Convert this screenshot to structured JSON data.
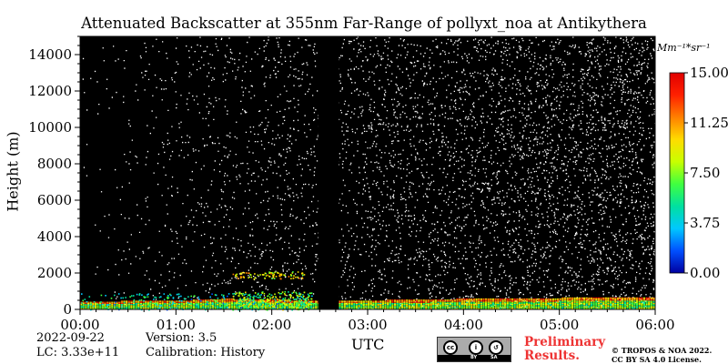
{
  "chart_data": {
    "type": "heatmap",
    "title": "Attenuated Backscatter at 355nm Far-Range of pollyxt_noa at Antikythera",
    "xlabel": "UTC",
    "ylabel": "Height (m)",
    "x_ticks": [
      "00:00",
      "01:00",
      "02:00",
      "03:00",
      "04:00",
      "05:00",
      "06:00"
    ],
    "xlim": [
      "00:00",
      "06:00"
    ],
    "y_ticks": [
      0,
      2000,
      4000,
      6000,
      8000,
      10000,
      12000,
      14000
    ],
    "ylim": [
      0,
      15000
    ],
    "colorbar": {
      "unit": "Mm⁻¹*sr⁻¹",
      "ticks": [
        "0.00",
        "3.75",
        "7.50",
        "11.25",
        "15.00"
      ],
      "range": [
        0,
        15
      ],
      "colors": [
        "#0000a0",
        "#0050ff",
        "#00c8ff",
        "#00e0a0",
        "#40ff40",
        "#c8ff00",
        "#ffdc00",
        "#ff8000",
        "#ff2000",
        "#e00000"
      ]
    },
    "background_color": "#000000",
    "noise_color": "#ffffff",
    "no_data_intervals": [
      [
        "02:29",
        "02:42"
      ]
    ],
    "boundary_layer_top": [
      {
        "time": "00:00",
        "height": 400
      },
      {
        "time": "01:00",
        "height": 450
      },
      {
        "time": "01:30",
        "height": 550
      },
      {
        "time": "02:00",
        "height": 500
      },
      {
        "time": "02:29",
        "height": 450
      },
      {
        "time": "02:42",
        "height": 450
      },
      {
        "time": "03:30",
        "height": 500
      },
      {
        "time": "04:00",
        "height": 550
      },
      {
        "time": "05:00",
        "height": 600
      },
      {
        "time": "06:00",
        "height": 650
      }
    ],
    "aerosol_features": [
      {
        "time_start": "00:00",
        "time_end": "02:25",
        "height_top": 900,
        "value": 7
      },
      {
        "time_start": "01:35",
        "time_end": "02:25",
        "height_top": 1000,
        "value": 10
      },
      {
        "time_start": "01:35",
        "time_end": "02:20",
        "height_top": 2100,
        "value": 12
      }
    ]
  },
  "footer": {
    "date": "2022-09-22",
    "lc": "LC: 3.33e+11",
    "version": "Version: 3.5",
    "calibration": "Calibration: History",
    "preliminary_line1": "Preliminary",
    "preliminary_line2": "Results.",
    "copyright_line1": "© TROPOS & NOA 2022.",
    "copyright_line2": "CC BY SA 4.0 License."
  },
  "license_badge": {
    "cc": "cc",
    "by": "BY",
    "sa": "SA"
  }
}
